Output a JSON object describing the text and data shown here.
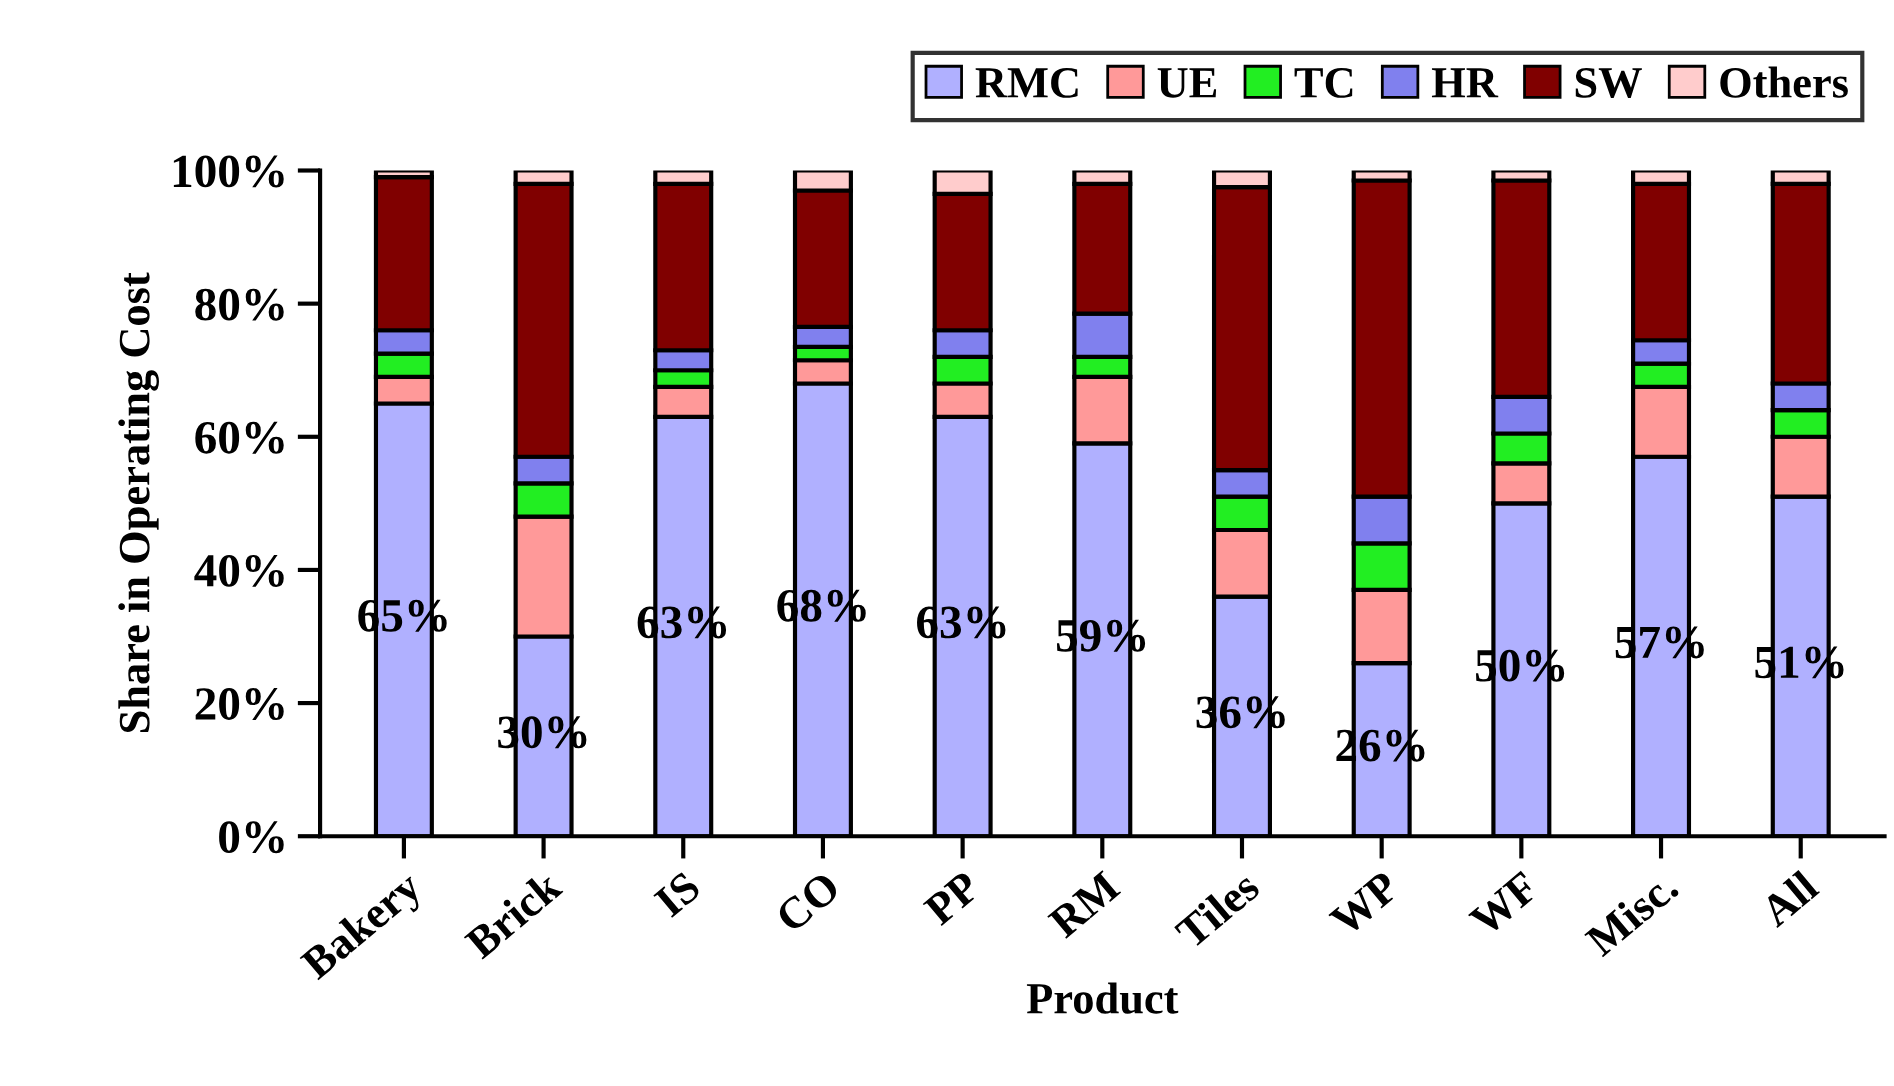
{
  "chart_data": {
    "type": "bar",
    "stacked": true,
    "xlabel": "Product",
    "ylabel": "Share in Operating Cost",
    "categories": [
      "Bakery",
      "Brick",
      "IS",
      "CO",
      "PP",
      "RM",
      "Tiles",
      "WP",
      "WF",
      "Misc.",
      "All"
    ],
    "series": [
      {
        "name": "RMC",
        "color": "#b0b0ff",
        "values": [
          65,
          30,
          63,
          68,
          63,
          59,
          36,
          26,
          50,
          57,
          51
        ],
        "value_labels": [
          "65%",
          "30%",
          "63%",
          "68%",
          "63%",
          "59%",
          "36%",
          "26%",
          "50%",
          "57%",
          "51%"
        ]
      },
      {
        "name": "UE",
        "color": "#ff9999",
        "values": [
          4,
          18,
          4.5,
          3.5,
          5,
          10,
          10,
          11,
          6,
          10.5,
          9
        ]
      },
      {
        "name": "TC",
        "color": "#22ee22",
        "values": [
          3.5,
          5,
          2.5,
          2,
          4,
          3,
          5,
          7,
          4.5,
          3.5,
          4
        ]
      },
      {
        "name": "HR",
        "color": "#8080ee",
        "values": [
          3.5,
          4,
          3,
          3,
          4,
          6.5,
          4,
          7,
          5.5,
          3.5,
          4
        ]
      },
      {
        "name": "SW",
        "color": "#800000",
        "values": [
          23,
          41,
          25,
          20.5,
          20.5,
          19.5,
          42.5,
          47.5,
          32.5,
          23.5,
          30
        ]
      },
      {
        "name": "Others",
        "color": "#ffcccc",
        "values": [
          1,
          2,
          2,
          3,
          3.5,
          2,
          2.5,
          1.5,
          1.5,
          2,
          2
        ]
      }
    ],
    "ylim": [
      0,
      100
    ],
    "yticks": [
      {
        "value": 0,
        "label": "0%"
      },
      {
        "value": 20,
        "label": "20%"
      },
      {
        "value": 40,
        "label": "40%"
      },
      {
        "value": 60,
        "label": "60%"
      },
      {
        "value": 80,
        "label": "80%"
      },
      {
        "value": 100,
        "label": "100%"
      }
    ],
    "grid": false,
    "legend": "top right"
  }
}
